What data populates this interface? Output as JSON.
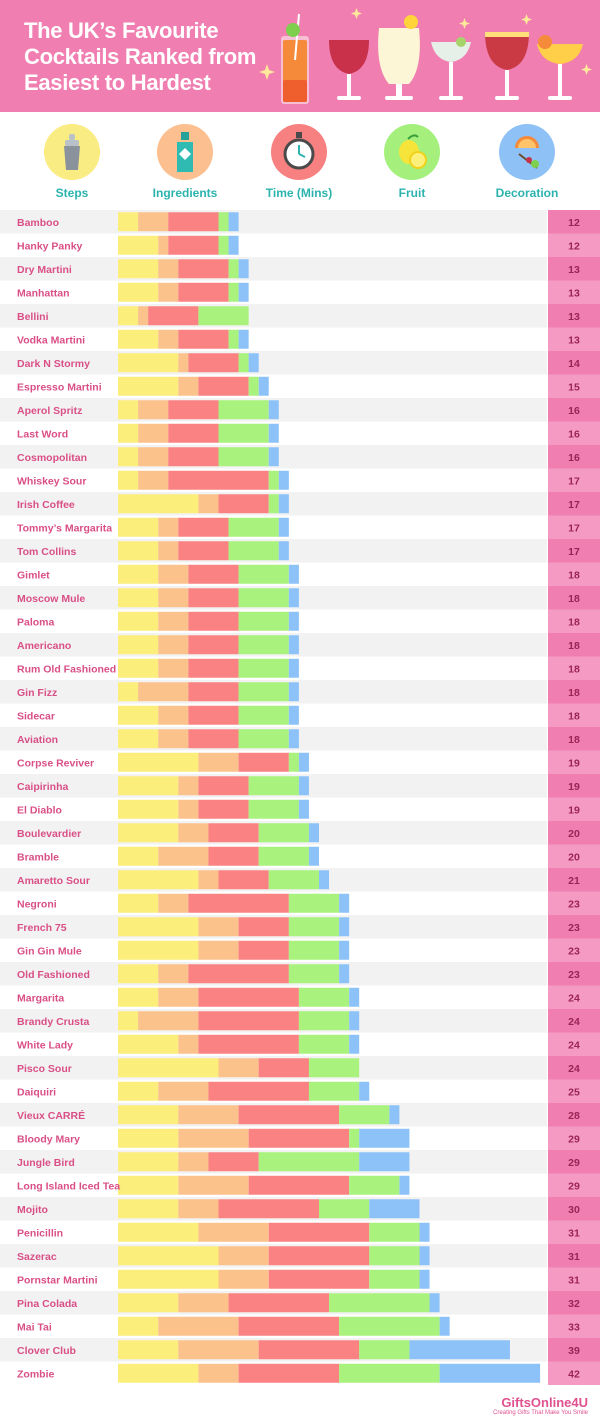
{
  "header": {
    "title_lines": [
      "The UK’s Favourite",
      "Cocktails Ranked from",
      "Easiest to Hardest"
    ],
    "background": "#f07eb0"
  },
  "legend": [
    {
      "label": "Steps",
      "icon": "cocktail-shaker-icon",
      "circle_color": "#f8ec82"
    },
    {
      "label": "Ingredients",
      "icon": "gin-bottle-icon",
      "circle_color": "#fbbf90"
    },
    {
      "label": "Time (Mins)",
      "icon": "stopwatch-icon",
      "circle_color": "#f78181"
    },
    {
      "label": "Fruit",
      "icon": "lemon-icon",
      "circle_color": "#a5f07c"
    },
    {
      "label": "Decoration",
      "icon": "orange-slice-icon",
      "circle_color": "#8ec1f5"
    }
  ],
  "chart_data": {
    "type": "bar",
    "stacked": true,
    "orientation": "horizontal",
    "series_names": [
      "Steps",
      "Ingredients",
      "Time (Mins)",
      "Fruit",
      "Decoration"
    ],
    "colors": [
      "#fcee7a",
      "#fcc28c",
      "#fa8282",
      "#a8f27d",
      "#8dc2f8"
    ],
    "rows": [
      {
        "name": "Bamboo",
        "values": [
          2,
          3,
          5,
          1,
          1
        ],
        "total": "12"
      },
      {
        "name": "Hanky Panky",
        "values": [
          4,
          1,
          5,
          1,
          1
        ],
        "total": "12"
      },
      {
        "name": "Dry Martini",
        "values": [
          4,
          2,
          5,
          1,
          1
        ],
        "total": "13"
      },
      {
        "name": "Manhattan",
        "values": [
          4,
          2,
          5,
          1,
          1
        ],
        "total": "13"
      },
      {
        "name": "Bellini",
        "values": [
          2,
          1,
          5,
          5,
          0
        ],
        "total": "13"
      },
      {
        "name": "Vodka Martini",
        "values": [
          4,
          2,
          5,
          1,
          1
        ],
        "total": "13"
      },
      {
        "name": "Dark N Stormy",
        "values": [
          6,
          1,
          5,
          1,
          1
        ],
        "total": "14"
      },
      {
        "name": "Espresso Martini",
        "values": [
          6,
          2,
          5,
          1,
          1
        ],
        "total": "15"
      },
      {
        "name": "Aperol Spritz",
        "values": [
          2,
          3,
          5,
          5,
          1
        ],
        "total": "16"
      },
      {
        "name": "Last Word",
        "values": [
          2,
          3,
          5,
          5,
          1
        ],
        "total": "16"
      },
      {
        "name": "Cosmopolitan",
        "values": [
          2,
          3,
          5,
          5,
          1
        ],
        "total": "16"
      },
      {
        "name": "Whiskey Sour",
        "values": [
          2,
          3,
          10,
          1,
          1
        ],
        "total": "17"
      },
      {
        "name": "Irish Coffee",
        "values": [
          8,
          2,
          5,
          1,
          1
        ],
        "total": "17"
      },
      {
        "name": "Tommy’s Margarita",
        "values": [
          4,
          2,
          5,
          5,
          1
        ],
        "total": "17"
      },
      {
        "name": "Tom Collins",
        "values": [
          4,
          2,
          5,
          5,
          1
        ],
        "total": "17"
      },
      {
        "name": "Gimlet",
        "values": [
          4,
          3,
          5,
          5,
          1
        ],
        "total": "18"
      },
      {
        "name": "Moscow Mule",
        "values": [
          4,
          3,
          5,
          5,
          1
        ],
        "total": "18"
      },
      {
        "name": "Paloma",
        "values": [
          4,
          3,
          5,
          5,
          1
        ],
        "total": "18"
      },
      {
        "name": "Americano",
        "values": [
          4,
          3,
          5,
          5,
          1
        ],
        "total": "18"
      },
      {
        "name": "Rum Old Fashioned",
        "values": [
          4,
          3,
          5,
          5,
          1
        ],
        "total": "18"
      },
      {
        "name": "Gin Fizz",
        "values": [
          2,
          5,
          5,
          5,
          1
        ],
        "total": "18"
      },
      {
        "name": "Sidecar",
        "values": [
          4,
          3,
          5,
          5,
          1
        ],
        "total": "18"
      },
      {
        "name": "Aviation",
        "values": [
          4,
          3,
          5,
          5,
          1
        ],
        "total": "18"
      },
      {
        "name": "Corpse Reviver",
        "values": [
          8,
          4,
          5,
          1,
          1
        ],
        "total": "19"
      },
      {
        "name": "Caipirinha",
        "values": [
          6,
          2,
          5,
          5,
          1
        ],
        "total": "19"
      },
      {
        "name": "El Diablo",
        "values": [
          6,
          2,
          5,
          5,
          1
        ],
        "total": "19"
      },
      {
        "name": "Boulevardier",
        "values": [
          6,
          3,
          5,
          5,
          1
        ],
        "total": "20"
      },
      {
        "name": "Bramble",
        "values": [
          4,
          5,
          5,
          5,
          1
        ],
        "total": "20"
      },
      {
        "name": "Amaretto Sour",
        "values": [
          8,
          2,
          5,
          5,
          1
        ],
        "total": "21"
      },
      {
        "name": "Negroni",
        "values": [
          4,
          3,
          10,
          5,
          1
        ],
        "total": "23"
      },
      {
        "name": "French 75",
        "values": [
          8,
          4,
          5,
          5,
          1
        ],
        "total": "23"
      },
      {
        "name": "Gin Gin Mule",
        "values": [
          8,
          4,
          5,
          5,
          1
        ],
        "total": "23"
      },
      {
        "name": "Old Fashioned",
        "values": [
          4,
          3,
          10,
          5,
          1
        ],
        "total": "23"
      },
      {
        "name": "Margarita",
        "values": [
          4,
          4,
          10,
          5,
          1
        ],
        "total": "24"
      },
      {
        "name": "Brandy Crusta",
        "values": [
          2,
          6,
          10,
          5,
          1
        ],
        "total": "24"
      },
      {
        "name": "White Lady",
        "values": [
          6,
          2,
          10,
          5,
          1
        ],
        "total": "24"
      },
      {
        "name": "Pisco Sour",
        "values": [
          10,
          4,
          5,
          5,
          0
        ],
        "total": "24"
      },
      {
        "name": "Daiquiri",
        "values": [
          4,
          5,
          10,
          5,
          1
        ],
        "total": "25"
      },
      {
        "name": "Vieux CARRÉ",
        "values": [
          6,
          6,
          10,
          5,
          1
        ],
        "total": "28"
      },
      {
        "name": "Bloody Mary",
        "values": [
          6,
          7,
          10,
          1,
          5
        ],
        "total": "29"
      },
      {
        "name": "Jungle Bird",
        "values": [
          6,
          3,
          5,
          10,
          5
        ],
        "total": "29"
      },
      {
        "name": "Long Island Iced Tea",
        "values": [
          6,
          7,
          10,
          5,
          1
        ],
        "total": "29"
      },
      {
        "name": "Mojito",
        "values": [
          6,
          4,
          10,
          5,
          5
        ],
        "total": "30"
      },
      {
        "name": "Penicillin",
        "values": [
          8,
          7,
          10,
          5,
          1
        ],
        "total": "31"
      },
      {
        "name": "Sazerac",
        "values": [
          10,
          5,
          10,
          5,
          1
        ],
        "total": "31"
      },
      {
        "name": "Pornstar Martini",
        "values": [
          10,
          5,
          10,
          5,
          1
        ],
        "total": "31"
      },
      {
        "name": "Pina Colada",
        "values": [
          6,
          5,
          10,
          10,
          1
        ],
        "total": "32"
      },
      {
        "name": "Mai Tai",
        "values": [
          4,
          8,
          10,
          10,
          1
        ],
        "total": "33"
      },
      {
        "name": "Clover Club",
        "values": [
          6,
          8,
          10,
          5,
          10
        ],
        "total": "39"
      },
      {
        "name": "Zombie",
        "values": [
          8,
          4,
          10,
          10,
          10
        ],
        "total": "42"
      }
    ]
  },
  "footer": {
    "logo": "GiftsOnline4U",
    "tagline": "Creating Gifts That Make You Smile"
  }
}
